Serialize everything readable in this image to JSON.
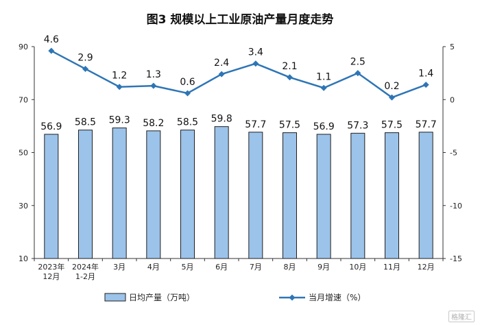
{
  "chart_data": {
    "type": "bar+line",
    "title": "图3  规模以上工业原油产量月度走势",
    "categories": [
      [
        "2023年",
        "12月"
      ],
      [
        "2024年",
        "1-2月"
      ],
      [
        "3月"
      ],
      [
        "4月"
      ],
      [
        "5月"
      ],
      [
        "6月"
      ],
      [
        "7月"
      ],
      [
        "8月"
      ],
      [
        "9月"
      ],
      [
        "10月"
      ],
      [
        "11月"
      ],
      [
        "12月"
      ]
    ],
    "series": [
      {
        "name": "日均产量（万吨）",
        "type": "bar",
        "axis": "left",
        "color": "#9cc3ea",
        "values": [
          56.9,
          58.5,
          59.3,
          58.2,
          58.5,
          59.8,
          57.7,
          57.5,
          56.9,
          57.3,
          57.5,
          57.7
        ],
        "labels": [
          "56.9",
          "58.5",
          "59.3",
          "58.2",
          "58.5",
          "59.8",
          "57.7",
          "57.5",
          "56.9",
          "57.3",
          "57.5",
          "57.7"
        ]
      },
      {
        "name": "当月增速（%）",
        "type": "line",
        "axis": "right",
        "color": "#2e75b6",
        "values": [
          4.6,
          2.9,
          1.2,
          1.3,
          0.6,
          2.4,
          3.4,
          2.1,
          1.1,
          2.5,
          0.2,
          1.4
        ],
        "labels": [
          "4.6",
          "2.9",
          "1.2",
          "1.3",
          "0.6",
          "2.4",
          "3.4",
          "2.1",
          "1.1",
          "2.5",
          "0.2",
          "1.4"
        ]
      }
    ],
    "y_left": {
      "min": 10,
      "max": 90,
      "ticks": [
        10,
        30,
        50,
        70,
        90
      ],
      "tick_labels": [
        "10",
        "30",
        "50",
        "70",
        "90"
      ]
    },
    "y_right": {
      "min": -15,
      "max": 5,
      "ticks": [
        -15,
        -10,
        -5,
        0,
        5
      ],
      "tick_labels": [
        "-15",
        "-10",
        "-5",
        "0",
        "5"
      ]
    },
    "legend_position": "bottom",
    "grid": false
  },
  "watermark": "格隆汇"
}
